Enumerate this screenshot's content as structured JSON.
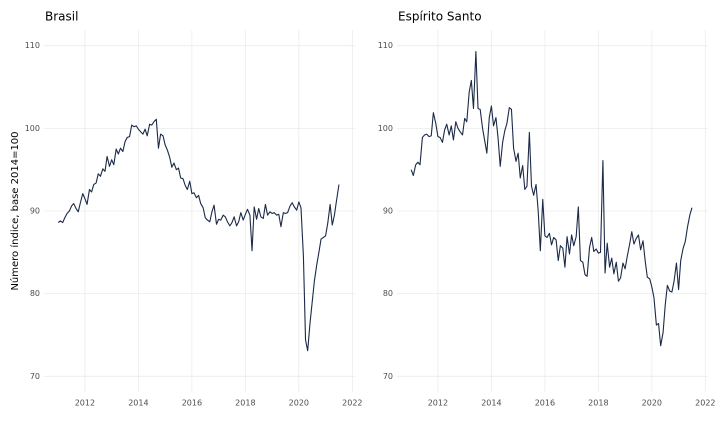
{
  "chart_data": [
    {
      "type": "line",
      "title": "Brasil",
      "ylabel": "Número índice, base 2014=100",
      "color": "#1b2a47",
      "grid": true,
      "xlim": [
        2010.47,
        2022.1
      ],
      "xticks": [
        2012,
        2014,
        2016,
        2018,
        2020,
        2022
      ],
      "ylim": [
        68.1,
        111.9
      ],
      "yticks": [
        70,
        80,
        90,
        100,
        110
      ],
      "x": [
        2011.0,
        2011.08,
        2011.17,
        2011.25,
        2011.33,
        2011.42,
        2011.5,
        2011.58,
        2011.67,
        2011.75,
        2011.83,
        2011.92,
        2012.0,
        2012.08,
        2012.17,
        2012.25,
        2012.33,
        2012.42,
        2012.5,
        2012.58,
        2012.67,
        2012.75,
        2012.83,
        2012.92,
        2013.0,
        2013.08,
        2013.17,
        2013.25,
        2013.33,
        2013.42,
        2013.5,
        2013.58,
        2013.67,
        2013.75,
        2013.83,
        2013.92,
        2014.0,
        2014.08,
        2014.17,
        2014.25,
        2014.33,
        2014.42,
        2014.5,
        2014.58,
        2014.67,
        2014.75,
        2014.83,
        2014.92,
        2015.0,
        2015.08,
        2015.17,
        2015.25,
        2015.33,
        2015.42,
        2015.5,
        2015.58,
        2015.67,
        2015.75,
        2015.83,
        2015.92,
        2016.0,
        2016.08,
        2016.17,
        2016.25,
        2016.33,
        2016.42,
        2016.5,
        2016.58,
        2016.67,
        2016.75,
        2016.83,
        2016.92,
        2017.0,
        2017.08,
        2017.17,
        2017.25,
        2017.33,
        2017.42,
        2017.5,
        2017.58,
        2017.67,
        2017.75,
        2017.83,
        2017.92,
        2018.0,
        2018.08,
        2018.17,
        2018.25,
        2018.33,
        2018.42,
        2018.5,
        2018.58,
        2018.67,
        2018.75,
        2018.83,
        2018.92,
        2019.0,
        2019.08,
        2019.17,
        2019.25,
        2019.33,
        2019.42,
        2019.5,
        2019.58,
        2019.67,
        2019.75,
        2019.83,
        2019.92,
        2020.0,
        2020.08,
        2020.17,
        2020.25,
        2020.33,
        2020.42,
        2020.5,
        2020.58,
        2020.67,
        2020.75,
        2020.83,
        2020.92,
        2021.0,
        2021.08,
        2021.17,
        2021.25,
        2021.33,
        2021.42,
        2021.5
      ],
      "values": [
        88.6,
        88.8,
        88.6,
        89.2,
        89.7,
        90.0,
        90.6,
        90.9,
        90.3,
        89.9,
        91.0,
        92.1,
        91.5,
        90.8,
        92.6,
        92.3,
        93.2,
        93.4,
        94.5,
        94.2,
        95.1,
        94.8,
        96.6,
        95.4,
        96.2,
        95.6,
        97.5,
        96.9,
        97.6,
        97.2,
        98.4,
        98.9,
        99.0,
        100.4,
        100.2,
        100.3,
        99.9,
        99.6,
        99.3,
        99.9,
        99.1,
        100.5,
        100.4,
        100.8,
        101.1,
        97.6,
        99.3,
        99.1,
        98.0,
        97.4,
        96.5,
        95.3,
        95.8,
        95.0,
        95.2,
        94.0,
        93.9,
        93.1,
        92.6,
        93.6,
        92.1,
        92.2,
        91.6,
        91.9,
        90.9,
        90.4,
        89.2,
        88.9,
        88.7,
        89.9,
        90.7,
        88.4,
        89.0,
        88.9,
        89.5,
        89.3,
        88.7,
        88.2,
        88.6,
        89.3,
        88.2,
        88.7,
        89.8,
        88.9,
        89.6,
        90.2,
        89.5,
        85.2,
        90.5,
        89.0,
        90.3,
        89.3,
        89.1,
        90.8,
        89.5,
        89.9,
        89.7,
        89.8,
        89.5,
        89.6,
        88.1,
        89.8,
        89.7,
        89.8,
        90.6,
        91.0,
        90.5,
        90.1,
        91.1,
        90.4,
        84.6,
        74.4,
        73.1,
        76.5,
        79.0,
        81.5,
        83.5,
        85.0,
        86.6,
        86.8,
        87.0,
        88.5,
        90.8,
        88.3,
        89.5,
        91.5,
        93.2
      ]
    },
    {
      "type": "line",
      "title": "Espírito Santo",
      "color": "#1b2a47",
      "grid": true,
      "xlim": [
        2010.47,
        2022.1
      ],
      "xticks": [
        2012,
        2014,
        2016,
        2018,
        2020,
        2022
      ],
      "ylim": [
        68.1,
        111.9
      ],
      "yticks": [
        70,
        80,
        90,
        100,
        110
      ],
      "x": [
        2011.0,
        2011.08,
        2011.17,
        2011.25,
        2011.33,
        2011.42,
        2011.5,
        2011.58,
        2011.67,
        2011.75,
        2011.83,
        2011.92,
        2012.0,
        2012.08,
        2012.17,
        2012.25,
        2012.33,
        2012.42,
        2012.5,
        2012.58,
        2012.67,
        2012.75,
        2012.83,
        2012.92,
        2013.0,
        2013.08,
        2013.17,
        2013.25,
        2013.33,
        2013.42,
        2013.5,
        2013.58,
        2013.67,
        2013.75,
        2013.83,
        2013.92,
        2014.0,
        2014.08,
        2014.17,
        2014.25,
        2014.33,
        2014.42,
        2014.5,
        2014.58,
        2014.67,
        2014.75,
        2014.83,
        2014.92,
        2015.0,
        2015.08,
        2015.17,
        2015.25,
        2015.33,
        2015.42,
        2015.5,
        2015.58,
        2015.67,
        2015.75,
        2015.83,
        2015.92,
        2016.0,
        2016.08,
        2016.17,
        2016.25,
        2016.33,
        2016.42,
        2016.5,
        2016.58,
        2016.67,
        2016.75,
        2016.83,
        2016.92,
        2017.0,
        2017.08,
        2017.17,
        2017.25,
        2017.33,
        2017.42,
        2017.5,
        2017.58,
        2017.67,
        2017.75,
        2017.83,
        2017.92,
        2018.0,
        2018.08,
        2018.17,
        2018.25,
        2018.33,
        2018.42,
        2018.5,
        2018.58,
        2018.67,
        2018.75,
        2018.83,
        2018.92,
        2019.0,
        2019.08,
        2019.17,
        2019.25,
        2019.33,
        2019.42,
        2019.5,
        2019.58,
        2019.67,
        2019.75,
        2019.83,
        2019.92,
        2020.0,
        2020.08,
        2020.17,
        2020.25,
        2020.33,
        2020.42,
        2020.5,
        2020.58,
        2020.67,
        2020.75,
        2020.83,
        2020.92,
        2021.0,
        2021.08,
        2021.17,
        2021.25,
        2021.33,
        2021.42,
        2021.5
      ],
      "values": [
        95.0,
        94.3,
        95.6,
        95.9,
        95.6,
        98.9,
        99.2,
        99.3,
        99.0,
        99.1,
        101.9,
        100.6,
        99.0,
        98.9,
        98.3,
        99.8,
        100.5,
        99.2,
        100.3,
        98.6,
        100.8,
        100.0,
        99.6,
        99.2,
        101.2,
        100.8,
        104.4,
        105.8,
        102.4,
        109.3,
        102.4,
        102.3,
        100.0,
        98.5,
        97.0,
        101.3,
        102.7,
        100.3,
        101.3,
        98.8,
        95.4,
        98.3,
        99.7,
        100.6,
        102.5,
        102.3,
        97.6,
        96.0,
        97.0,
        94.0,
        95.5,
        92.6,
        93.0,
        99.5,
        93.0,
        91.9,
        93.2,
        90.0,
        85.2,
        91.4,
        87.0,
        86.8,
        87.3,
        85.9,
        86.8,
        86.5,
        84.0,
        85.8,
        85.5,
        83.2,
        86.9,
        84.8,
        87.1,
        85.8,
        86.9,
        90.5,
        84.0,
        83.8,
        82.3,
        82.1,
        85.6,
        86.8,
        85.1,
        85.4,
        84.9,
        85.0,
        96.1,
        82.5,
        86.1,
        83.2,
        84.3,
        82.4,
        83.8,
        81.5,
        81.9,
        83.7,
        83.0,
        84.5,
        86.0,
        87.5,
        86.0,
        86.7,
        87.1,
        85.3,
        86.4,
        84.0,
        82.0,
        81.8,
        80.8,
        79.5,
        76.2,
        76.4,
        73.7,
        75.3,
        78.6,
        81.0,
        80.3,
        80.2,
        81.5,
        83.7,
        80.5,
        84.0,
        85.5,
        86.3,
        88.0,
        89.5,
        90.4
      ]
    }
  ]
}
